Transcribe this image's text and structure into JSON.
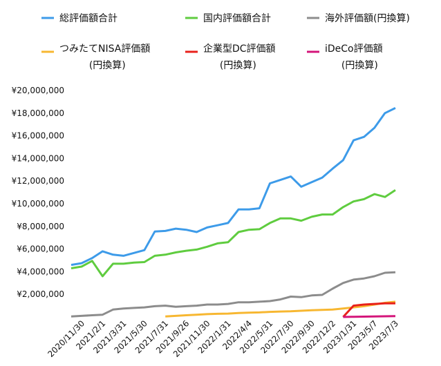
{
  "chart_data": {
    "type": "line",
    "categories": [
      "2020/11/30",
      null,
      "2021/2/1",
      null,
      "2021/3/31",
      null,
      "2021/5/30",
      null,
      "2021/7/31",
      null,
      "2021/9/26",
      null,
      "2021/11/30",
      null,
      "2022/1/31",
      null,
      "2022/4/4",
      null,
      "2022/5/31",
      null,
      "2022/7/30",
      null,
      "2022/9/30",
      null,
      "2022/12/2",
      null,
      "2023/1/31",
      null,
      "2023/5/7",
      null,
      "2023/7/3",
      null
    ],
    "series": [
      {
        "name": "総評価額合計",
        "color": "#3d9be9",
        "values": [
          4600000,
          4750000,
          5200000,
          5800000,
          5500000,
          5400000,
          5650000,
          5900000,
          7550000,
          7600000,
          7800000,
          7700000,
          7500000,
          7900000,
          8100000,
          8300000,
          9500000,
          9500000,
          9600000,
          11800000,
          12100000,
          12400000,
          11500000,
          11900000,
          12300000,
          13100000,
          13850000,
          15600000,
          15900000,
          16700000,
          18000000,
          18450000
        ]
      },
      {
        "name": "国内評価額合計",
        "color": "#5fcc3f",
        "values": [
          4300000,
          4450000,
          4950000,
          3600000,
          4700000,
          4700000,
          4800000,
          4850000,
          5400000,
          5500000,
          5700000,
          5850000,
          5950000,
          6200000,
          6500000,
          6600000,
          7500000,
          7700000,
          7750000,
          8300000,
          8700000,
          8700000,
          8500000,
          8850000,
          9050000,
          9050000,
          9700000,
          10200000,
          10400000,
          10850000,
          10600000,
          11200000
        ]
      },
      {
        "name": "海外評価額(円換算)",
        "color": "#8c8c8c",
        "values": [
          50000,
          100000,
          150000,
          200000,
          650000,
          750000,
          800000,
          850000,
          950000,
          1000000,
          900000,
          950000,
          1000000,
          1100000,
          1100000,
          1150000,
          1300000,
          1300000,
          1350000,
          1400000,
          1550000,
          1800000,
          1750000,
          1900000,
          1950000,
          2500000,
          3000000,
          3300000,
          3400000,
          3600000,
          3900000,
          3950000
        ]
      },
      {
        "name": "つみたてNISA評価額\n(円換算)",
        "color": "#f7b731",
        "values": [
          null,
          null,
          null,
          null,
          null,
          null,
          null,
          null,
          null,
          50000,
          100000,
          150000,
          200000,
          250000,
          280000,
          300000,
          350000,
          380000,
          400000,
          450000,
          480000,
          500000,
          550000,
          600000,
          620000,
          650000,
          750000,
          850000,
          950000,
          1100000,
          1250000,
          1350000
        ]
      },
      {
        "name": "企業型DC評価額\n(円換算)",
        "color": "#e8211b",
        "values": [
          null,
          null,
          null,
          null,
          null,
          null,
          null,
          null,
          null,
          null,
          null,
          null,
          null,
          null,
          null,
          null,
          null,
          null,
          null,
          null,
          null,
          null,
          null,
          null,
          null,
          null,
          0,
          1000000,
          1100000,
          1150000,
          1200000,
          1200000
        ]
      },
      {
        "name": "iDeCo評価額\n(円換算)",
        "color": "#d4157a",
        "values": [
          null,
          null,
          null,
          null,
          null,
          null,
          null,
          null,
          null,
          null,
          null,
          null,
          null,
          null,
          null,
          null,
          null,
          null,
          null,
          null,
          null,
          null,
          null,
          null,
          null,
          null,
          0,
          20000,
          30000,
          50000,
          60000,
          80000
        ]
      }
    ],
    "ylim": [
      0,
      20000000
    ],
    "yticks": [
      {
        "value": 2000000,
        "label": "¥2,000,000"
      },
      {
        "value": 4000000,
        "label": "¥4,000,000"
      },
      {
        "value": 6000000,
        "label": "¥6,000,000"
      },
      {
        "value": 8000000,
        "label": "¥8,000,000"
      },
      {
        "value": 10000000,
        "label": "¥10,000,000"
      },
      {
        "value": 12000000,
        "label": "¥12,000,000"
      },
      {
        "value": 14000000,
        "label": "¥14,000,000"
      },
      {
        "value": 16000000,
        "label": "¥16,000,000"
      },
      {
        "value": 18000000,
        "label": "¥18,000,000"
      },
      {
        "value": 20000000,
        "label": "¥20,000,000"
      }
    ],
    "grid": false
  }
}
